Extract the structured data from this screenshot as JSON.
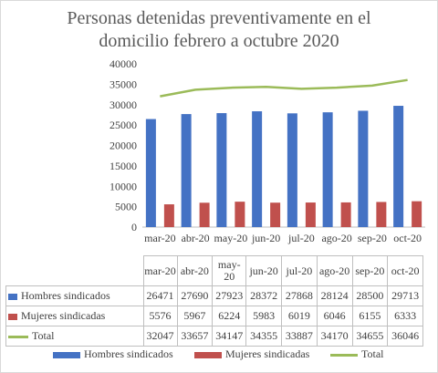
{
  "chart_data": {
    "type": "bar",
    "title_lines": [
      "Personas detenidas preventivamente en el",
      "domicilio febrero a octubre 2020"
    ],
    "categories": [
      "mar-20",
      "abr-20",
      "may-20",
      "jun-20",
      "jul-20",
      "ago-20",
      "sep-20",
      "oct-20"
    ],
    "series": [
      {
        "name": "Hombres sindicados",
        "kind": "bar",
        "color": "#4472c4",
        "values": [
          26471,
          27690,
          27923,
          28372,
          27868,
          28124,
          28500,
          29713
        ]
      },
      {
        "name": "Mujeres sindicadas",
        "kind": "bar",
        "color": "#c0504d",
        "values": [
          5576,
          5967,
          6224,
          5983,
          6019,
          6046,
          6155,
          6333
        ]
      },
      {
        "name": "Total",
        "kind": "line",
        "color": "#9bbb59",
        "values": [
          32047,
          33657,
          34147,
          34355,
          33887,
          34170,
          34655,
          36046
        ]
      }
    ],
    "ylim": [
      0,
      40000
    ],
    "yticks": [
      "0",
      "5000",
      "10000",
      "15000",
      "20000",
      "25000",
      "30000",
      "35000",
      "40000"
    ],
    "grid": false,
    "data_table": true,
    "legend_position": "bottom"
  }
}
